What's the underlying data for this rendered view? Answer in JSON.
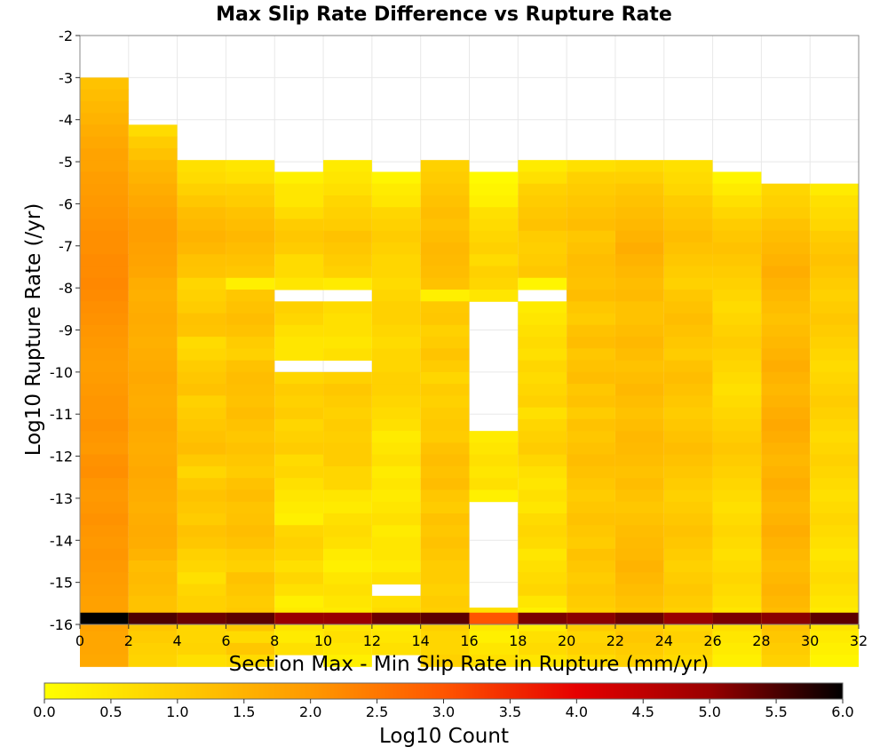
{
  "chart_data": {
    "type": "heatmap",
    "title": "Max Slip Rate Difference vs Rupture Rate",
    "xlabel": "Section Max - Min Slip Rate in Rupture (mm/yr)",
    "ylabel": "Log10 Rupture Rate (/yr)",
    "xlim": [
      0,
      32
    ],
    "ylim": [
      -16,
      -2
    ],
    "x_ticks": [
      "0",
      "2",
      "4",
      "6",
      "8",
      "10",
      "12",
      "14",
      "16",
      "18",
      "20",
      "22",
      "24",
      "26",
      "28",
      "30",
      "32"
    ],
    "y_ticks": [
      "-2",
      "-3",
      "-4",
      "-5",
      "-6",
      "-7",
      "-8",
      "-9",
      "-10",
      "-11",
      "-12",
      "-13",
      "-14",
      "-15",
      "-16"
    ],
    "x_bin_width": 2,
    "y_bin_height": 0.28,
    "y_bins_top": -3.0,
    "cells": [
      [
        1.2,
        1.3,
        1.4,
        1.5,
        1.6,
        1.7,
        1.8,
        1.8,
        1.9,
        1.95,
        2.0,
        2.05,
        2.1,
        2.15,
        2.15,
        2.2,
        2.2,
        2.25,
        2.2,
        2.15,
        2.1,
        2.05,
        2.0,
        1.95,
        1.9,
        1.95,
        2.0,
        2.05,
        2.05,
        2.1,
        2.05,
        2.0,
        2.1,
        2.15,
        2.05,
        2.0,
        2.05,
        2.1,
        2.05,
        2.0,
        2.05,
        2.0,
        1.95,
        1.9,
        1.85,
        1.85,
        1.8,
        1.75,
        1.75,
        1.7,
        6.0
      ],
      [
        null,
        null,
        null,
        null,
        0.7,
        1.0,
        1.2,
        1.4,
        1.5,
        1.6,
        1.7,
        1.8,
        1.9,
        1.9,
        1.85,
        1.8,
        1.75,
        1.6,
        1.55,
        1.6,
        1.65,
        1.6,
        1.55,
        1.6,
        1.65,
        1.7,
        1.65,
        1.6,
        1.65,
        1.7,
        1.65,
        1.6,
        1.65,
        1.7,
        1.65,
        1.6,
        1.55,
        1.6,
        1.65,
        1.6,
        1.5,
        1.3,
        1.35,
        1.3,
        1.2,
        1.2,
        1.1,
        1.0,
        0.9,
        0.85,
        5.5
      ],
      [
        null,
        null,
        null,
        null,
        null,
        null,
        null,
        0.6,
        0.7,
        0.9,
        1.1,
        1.3,
        1.4,
        1.5,
        1.4,
        1.2,
        1.15,
        0.8,
        0.9,
        1.0,
        1.2,
        1.15,
        0.7,
        0.8,
        1.0,
        1.1,
        1.2,
        0.9,
        1.0,
        1.1,
        1.2,
        1.3,
        1.05,
        0.8,
        1.05,
        1.2,
        1.1,
        1.0,
        1.2,
        1.1,
        0.9,
        0.8,
        0.6,
        0.8,
        0.9,
        0.9,
        0.8,
        0.8,
        0.85,
        0.6,
        5.3
      ],
      [
        null,
        null,
        null,
        null,
        null,
        null,
        null,
        0.5,
        0.6,
        0.9,
        1.0,
        1.2,
        1.3,
        1.4,
        1.3,
        1.2,
        1.1,
        0.3,
        1.1,
        1.2,
        1.3,
        1.2,
        1.0,
        0.9,
        1.2,
        1.3,
        1.25,
        1.2,
        1.3,
        1.2,
        1.1,
        1.2,
        1.1,
        1.0,
        1.2,
        1.3,
        1.15,
        1.2,
        1.3,
        1.2,
        1.0,
        0.9,
        1.2,
        1.1,
        1.0,
        1.05,
        1.1,
        0.7,
        1.1,
        0.7,
        5.4
      ],
      [
        null,
        null,
        null,
        null,
        null,
        null,
        null,
        null,
        0.3,
        0.5,
        0.5,
        0.7,
        1.0,
        1.1,
        1.0,
        0.7,
        0.7,
        0.5,
        null,
        0.9,
        0.8,
        0.6,
        0.5,
        0.5,
        null,
        0.8,
        1.0,
        0.9,
        1.0,
        0.8,
        0.9,
        1.0,
        0.7,
        0.8,
        0.6,
        0.5,
        0.4,
        0.3,
        0.8,
        0.9,
        0.8,
        0.6,
        0.8,
        0.6,
        0.3,
        0.4,
        0.5,
        0.4,
        0.6,
        null,
        5.0
      ],
      [
        null,
        null,
        null,
        null,
        null,
        null,
        null,
        0.4,
        0.5,
        0.6,
        0.8,
        0.9,
        1.0,
        1.2,
        1.1,
        1.0,
        0.9,
        0.4,
        null,
        0.7,
        0.6,
        0.6,
        0.5,
        0.6,
        null,
        0.9,
        1.1,
        1.0,
        0.9,
        1.0,
        0.95,
        1.0,
        1.0,
        0.8,
        0.8,
        0.5,
        0.4,
        0.6,
        0.7,
        0.6,
        0.4,
        0.3,
        0.5,
        0.6,
        0.5,
        0.4,
        0.5,
        0.6,
        0.5,
        0.3,
        5.0
      ],
      [
        null,
        null,
        null,
        null,
        null,
        null,
        null,
        null,
        0.2,
        0.4,
        0.5,
        0.8,
        0.9,
        1.0,
        0.9,
        0.8,
        0.8,
        0.7,
        0.8,
        0.9,
        0.9,
        0.8,
        0.7,
        0.8,
        0.8,
        0.9,
        0.9,
        0.8,
        0.7,
        0.6,
        0.4,
        0.5,
        0.6,
        0.4,
        0.5,
        0.4,
        0.5,
        0.6,
        0.4,
        0.5,
        0.5,
        0.4,
        0.6,
        null,
        0.6,
        0.7,
        0.4,
        0.5,
        0.6,
        null,
        5.3
      ],
      [
        null,
        null,
        null,
        null,
        null,
        null,
        null,
        0.9,
        1.0,
        1.1,
        1.2,
        1.3,
        1.2,
        1.3,
        1.4,
        1.35,
        1.3,
        1.2,
        0.3,
        1.05,
        1.1,
        0.9,
        1.0,
        1.15,
        1.0,
        0.8,
        1.0,
        0.9,
        1.0,
        1.05,
        1.0,
        1.2,
        1.3,
        1.2,
        1.3,
        1.1,
        1.0,
        1.2,
        1.1,
        1.2,
        1.1,
        1.0,
        1.0,
        0.9,
        1.0,
        0.95,
        0.9,
        0.8,
        0.8,
        0.9,
        5.4
      ],
      [
        null,
        null,
        null,
        null,
        null,
        null,
        null,
        null,
        0.1,
        0.2,
        0.3,
        0.6,
        0.7,
        0.8,
        0.9,
        0.7,
        0.9,
        0.8,
        0.5,
        null,
        null,
        null,
        null,
        null,
        null,
        null,
        null,
        null,
        null,
        null,
        0.4,
        0.5,
        0.6,
        0.5,
        0.6,
        0.3,
        null,
        null,
        null,
        null,
        null,
        null,
        null,
        null,
        null,
        0.6,
        0.4,
        0.3,
        0.5,
        0.6,
        3.0
      ],
      [
        null,
        null,
        null,
        null,
        null,
        null,
        null,
        0.4,
        0.6,
        0.9,
        1.0,
        1.1,
        1.2,
        1.0,
        0.95,
        1.0,
        1.1,
        0.2,
        null,
        0.4,
        0.5,
        0.6,
        0.7,
        0.6,
        0.8,
        0.7,
        0.8,
        0.9,
        0.6,
        0.8,
        0.9,
        1.0,
        0.8,
        0.6,
        0.5,
        0.6,
        0.5,
        0.7,
        0.8,
        0.7,
        0.5,
        0.6,
        0.7,
        0.8,
        0.5,
        0.3,
        0.4,
        0.6,
        0.7,
        0.5,
        5.2
      ],
      [
        null,
        null,
        null,
        null,
        null,
        null,
        null,
        0.6,
        0.9,
        1.0,
        1.1,
        1.2,
        1.3,
        1.1,
        1.2,
        1.3,
        1.25,
        1.2,
        1.3,
        1.1,
        1.0,
        1.2,
        1.3,
        1.1,
        1.2,
        1.3,
        1.1,
        1.2,
        1.0,
        1.2,
        1.1,
        1.2,
        1.3,
        1.2,
        1.1,
        1.0,
        1.1,
        1.2,
        1.1,
        1.0,
        1.2,
        1.1,
        1.0,
        1.1,
        1.0,
        0.9,
        1.0,
        0.8,
        0.9,
        0.7,
        5.1
      ],
      [
        null,
        null,
        null,
        null,
        null,
        null,
        null,
        0.7,
        0.9,
        1.1,
        1.2,
        1.3,
        1.4,
        1.5,
        1.6,
        1.5,
        1.4,
        1.3,
        1.35,
        1.2,
        1.2,
        1.3,
        1.4,
        1.3,
        1.2,
        1.3,
        1.4,
        1.3,
        1.2,
        1.3,
        1.4,
        1.35,
        1.3,
        1.2,
        1.3,
        1.2,
        1.1,
        1.2,
        1.3,
        1.35,
        1.4,
        1.5,
        1.4,
        1.3,
        1.2,
        1.1,
        1.0,
        1.1,
        1.0,
        0.9,
        5.3
      ],
      [
        null,
        null,
        null,
        null,
        null,
        null,
        null,
        0.6,
        0.7,
        0.8,
        1.0,
        1.1,
        1.2,
        1.3,
        1.2,
        1.1,
        1.0,
        0.9,
        1.1,
        1.2,
        1.3,
        1.2,
        1.1,
        1.0,
        1.2,
        1.3,
        1.2,
        1.1,
        1.0,
        1.1,
        1.2,
        1.3,
        1.2,
        1.1,
        1.0,
        0.9,
        1.0,
        1.1,
        1.2,
        1.1,
        1.0,
        0.9,
        1.0,
        1.1,
        1.0,
        0.9,
        0.8,
        0.9,
        0.8,
        0.7,
        5.0
      ],
      [
        null,
        null,
        null,
        null,
        null,
        null,
        null,
        null,
        0.2,
        0.4,
        0.6,
        0.8,
        1.0,
        1.1,
        1.2,
        1.1,
        1.0,
        0.9,
        0.8,
        0.7,
        0.8,
        0.9,
        1.0,
        0.9,
        0.8,
        0.7,
        0.6,
        0.7,
        0.8,
        0.9,
        1.0,
        1.1,
        1.0,
        0.9,
        0.8,
        0.7,
        0.6,
        0.7,
        0.8,
        0.7,
        0.6,
        0.7,
        0.8,
        0.7,
        0.6,
        0.5,
        0.6,
        0.5,
        0.4,
        0.3,
        5.2
      ],
      [
        null,
        null,
        null,
        null,
        null,
        null,
        null,
        null,
        null,
        0.8,
        0.9,
        1.0,
        1.2,
        1.3,
        1.4,
        1.5,
        1.6,
        1.5,
        1.4,
        1.3,
        1.2,
        1.3,
        1.4,
        1.5,
        1.6,
        1.5,
        1.4,
        1.5,
        1.6,
        1.7,
        1.6,
        1.5,
        1.4,
        1.5,
        1.6,
        1.5,
        1.4,
        1.5,
        1.6,
        1.5,
        1.4,
        1.3,
        1.4,
        1.5,
        1.4,
        1.3,
        1.2,
        1.1,
        1.0,
        0.9,
        5.1
      ],
      [
        null,
        null,
        null,
        null,
        null,
        null,
        null,
        null,
        null,
        0.4,
        0.6,
        0.7,
        0.8,
        1.0,
        1.1,
        1.2,
        1.1,
        1.0,
        0.9,
        1.0,
        1.1,
        1.0,
        0.9,
        0.8,
        0.7,
        0.8,
        0.9,
        1.0,
        0.9,
        0.8,
        0.7,
        0.8,
        0.9,
        0.8,
        0.7,
        0.6,
        0.7,
        0.8,
        0.7,
        0.6,
        0.5,
        0.6,
        0.7,
        0.6,
        0.5,
        0.4,
        0.5,
        0.4,
        0.3,
        0.2,
        5.4
      ]
    ],
    "colorbar": {
      "label": "Log10 Count",
      "min": 0.0,
      "max": 6.0,
      "ticks": [
        "0.0",
        "0.5",
        "1.0",
        "1.5",
        "2.0",
        "2.5",
        "3.0",
        "3.5",
        "4.0",
        "4.5",
        "5.0",
        "5.5",
        "6.0"
      ],
      "colors": [
        "#ffff00",
        "#ffcc00",
        "#ff9900",
        "#ff5500",
        "#e60000",
        "#990000",
        "#000000"
      ]
    },
    "grid": true,
    "background": "#ffffff"
  }
}
